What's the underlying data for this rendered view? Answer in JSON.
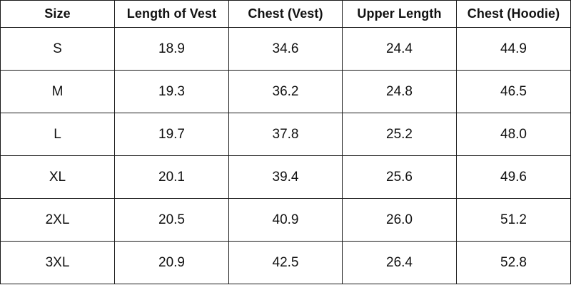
{
  "table": {
    "headers": [
      "Size",
      "Length of Vest",
      "Chest (Vest)",
      "Upper Length",
      "Chest (Hoodie)"
    ],
    "rows": [
      [
        "S",
        "18.9",
        "34.6",
        "24.4",
        "44.9"
      ],
      [
        "M",
        "19.3",
        "36.2",
        "24.8",
        "46.5"
      ],
      [
        "L",
        "19.7",
        "37.8",
        "25.2",
        "48.0"
      ],
      [
        "XL",
        "20.1",
        "39.4",
        "25.6",
        "49.6"
      ],
      [
        "2XL",
        "20.5",
        "40.9",
        "26.0",
        "51.2"
      ],
      [
        "3XL",
        "20.9",
        "42.5",
        "26.4",
        "52.8"
      ]
    ]
  }
}
